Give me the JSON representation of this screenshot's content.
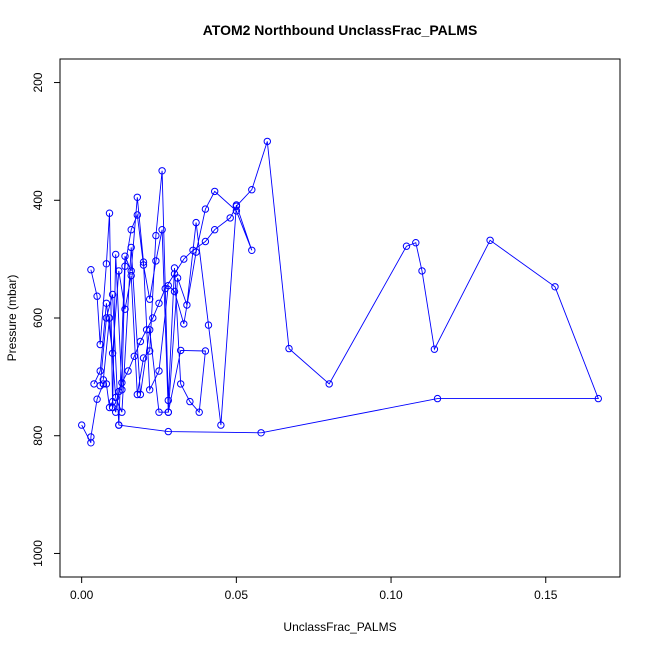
{
  "chart_data": {
    "type": "scatter",
    "title": "ATOM2 Northbound UnclassFrac_PALMS",
    "xlabel": "UnclassFrac_PALMS",
    "ylabel": "Pressure (mbar)",
    "xlim": [
      -0.007,
      0.174
    ],
    "ylim": [
      1040,
      160
    ],
    "y_reversed": true,
    "x_ticks": [
      {
        "value": 0.0,
        "label": "0.00"
      },
      {
        "value": 0.05,
        "label": "0.05"
      },
      {
        "value": 0.1,
        "label": "0.10"
      },
      {
        "value": 0.15,
        "label": "0.15"
      }
    ],
    "y_ticks": [
      {
        "value": 200,
        "label": "200"
      },
      {
        "value": 400,
        "label": "400"
      },
      {
        "value": 600,
        "label": "600"
      },
      {
        "value": 800,
        "label": "800"
      },
      {
        "value": 1000,
        "label": "1000"
      }
    ],
    "color": "#0000ff",
    "marker": "open-circle",
    "connected": true,
    "series": [
      {
        "x": [
          0.0,
          0.003,
          0.003,
          0.005,
          0.007,
          0.008,
          0.009,
          0.01,
          0.011,
          0.012,
          0.013,
          0.015,
          0.017,
          0.019,
          0.021,
          0.023,
          0.025,
          0.027,
          0.03,
          0.033,
          0.036,
          0.04,
          0.043,
          0.048,
          0.05,
          0.055,
          0.06,
          0.067,
          0.08,
          0.105,
          0.108,
          0.11,
          0.114,
          0.132,
          0.153,
          0.167,
          0.115,
          0.058,
          0.028,
          0.012
        ],
        "y": [
          782,
          812,
          802,
          738,
          712,
          712,
          752,
          742,
          760,
          725,
          710,
          690,
          665,
          640,
          620,
          600,
          575,
          550,
          525,
          500,
          485,
          470,
          450,
          430,
          410,
          382,
          300,
          652,
          712,
          478,
          472,
          520,
          653,
          468,
          547,
          737,
          737,
          795,
          793,
          782
        ]
      },
      {
        "x": [
          0.003,
          0.005,
          0.006,
          0.008,
          0.009,
          0.01,
          0.011,
          0.013,
          0.014,
          0.016,
          0.018,
          0.02,
          0.022,
          0.024,
          0.026,
          0.028,
          0.031,
          0.034,
          0.037,
          0.041,
          0.045,
          0.05,
          0.055,
          0.05,
          0.043,
          0.04,
          0.037,
          0.033,
          0.03,
          0.028,
          0.025,
          0.022,
          0.02,
          0.018,
          0.016,
          0.014,
          0.012,
          0.01,
          0.008,
          0.006
        ],
        "y": [
          518,
          563,
          645,
          508,
          422,
          752,
          492,
          722,
          512,
          450,
          425,
          510,
          568,
          503,
          450,
          760,
          532,
          578,
          438,
          612,
          782,
          408,
          485,
          418,
          385,
          415,
          488,
          610,
          555,
          545,
          690,
          722,
          505,
          395,
          520,
          495,
          782,
          560,
          600,
          715
        ]
      },
      {
        "x": [
          0.004,
          0.006,
          0.008,
          0.01,
          0.012,
          0.014,
          0.016,
          0.018,
          0.02,
          0.022,
          0.024,
          0.026,
          0.028,
          0.03,
          0.032,
          0.035,
          0.038,
          0.04,
          0.032,
          0.028,
          0.025,
          0.022,
          0.019,
          0.016,
          0.013,
          0.011,
          0.009,
          0.007
        ],
        "y": [
          712,
          690,
          575,
          660,
          520,
          585,
          528,
          730,
          668,
          656,
          460,
          350,
          740,
          515,
          712,
          742,
          760,
          656,
          655,
          760,
          760,
          620,
          730,
          480,
          760,
          735,
          600,
          705
        ]
      }
    ]
  }
}
